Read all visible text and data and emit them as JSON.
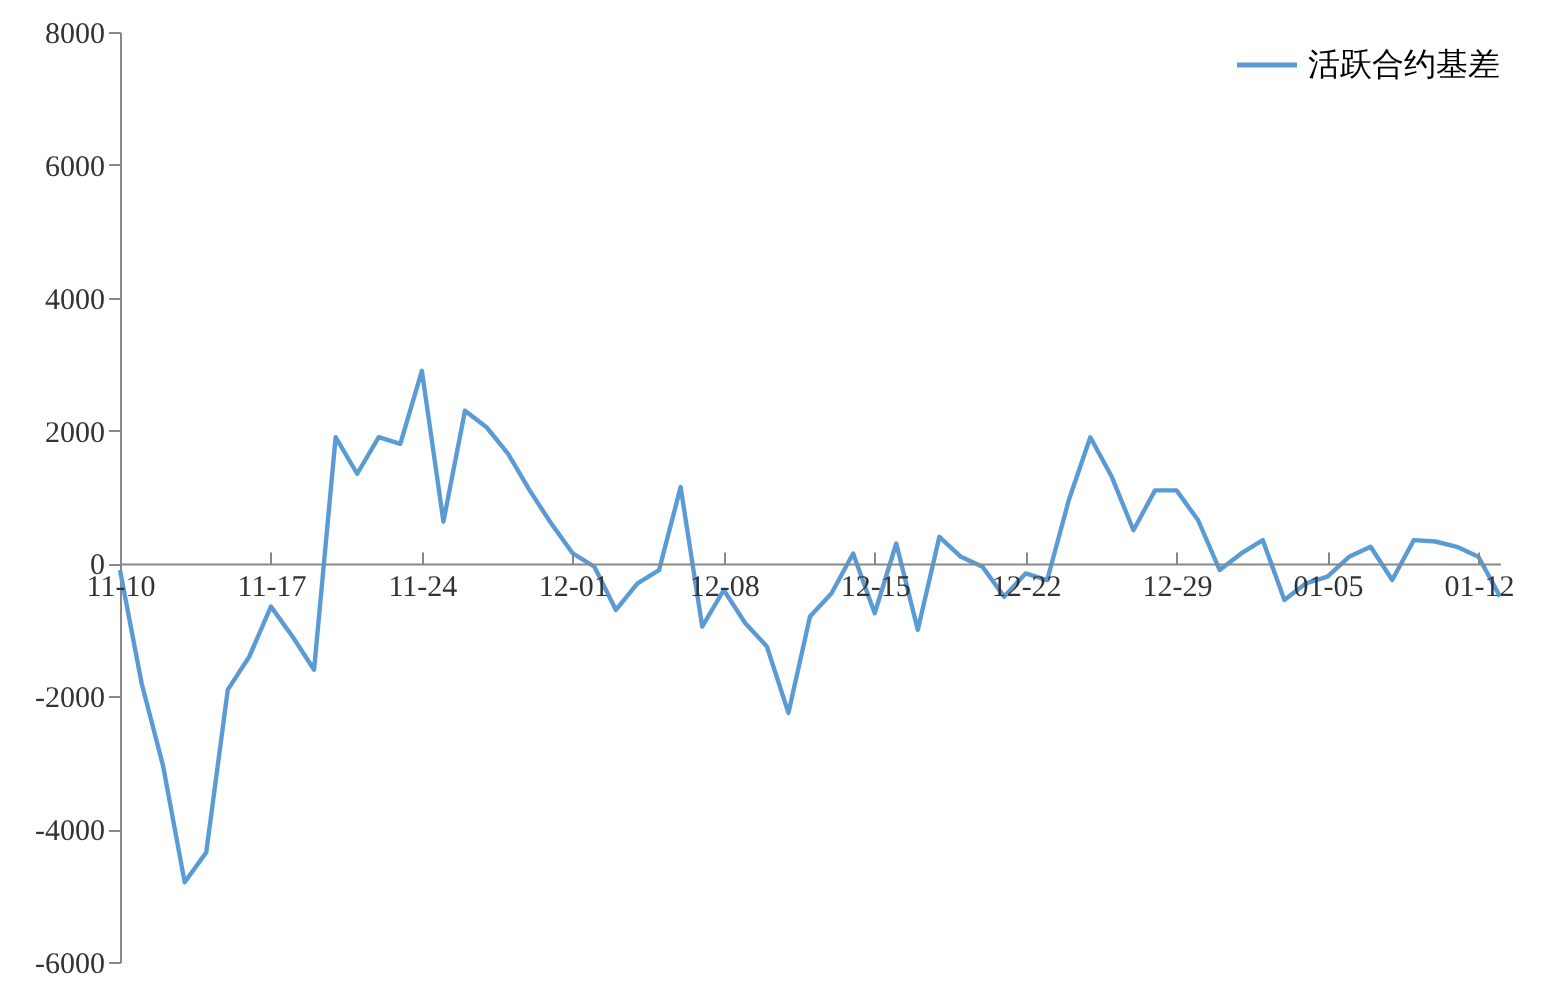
{
  "chart_data": {
    "type": "line",
    "categories": [
      "11-10",
      null,
      null,
      null,
      null,
      null,
      null,
      "11-17",
      null,
      null,
      null,
      null,
      null,
      null,
      "11-24",
      null,
      null,
      null,
      null,
      null,
      null,
      "12-01",
      null,
      null,
      null,
      null,
      null,
      null,
      "12-08",
      null,
      null,
      null,
      null,
      null,
      null,
      "12-15",
      null,
      null,
      null,
      null,
      null,
      null,
      "12-22",
      null,
      null,
      null,
      null,
      null,
      null,
      "12-29",
      null,
      null,
      null,
      null,
      null,
      null,
      "01-05",
      null,
      null,
      null,
      null,
      null,
      null,
      "01-12",
      null
    ],
    "series": [
      {
        "name": "活跃合约基差",
        "color": "#5b9bd5",
        "values": [
          -100,
          -1800,
          -3050,
          -4800,
          -4350,
          -1900,
          -1400,
          -650,
          -1100,
          -1600,
          1900,
          1350,
          1900,
          1800,
          2900,
          630,
          2300,
          2050,
          1650,
          1100,
          600,
          150,
          -50,
          -700,
          -300,
          -100,
          1150,
          -950,
          -400,
          -900,
          -1250,
          -2250,
          -800,
          -450,
          150,
          -750,
          300,
          -1000,
          400,
          100,
          -50,
          -500,
          -150,
          -250,
          950,
          1900,
          1300,
          500,
          1100,
          1100,
          650,
          -100,
          150,
          350,
          -550,
          -300,
          -200,
          100,
          250,
          -250,
          350,
          330,
          250,
          100,
          -500
        ]
      }
    ],
    "ylim": [
      -6000,
      8000
    ],
    "yticks": [
      -6000,
      -4000,
      -2000,
      0,
      2000,
      4000,
      6000,
      8000
    ],
    "grid": false,
    "legend": "top right",
    "marker": "none",
    "line_style": "solid"
  }
}
